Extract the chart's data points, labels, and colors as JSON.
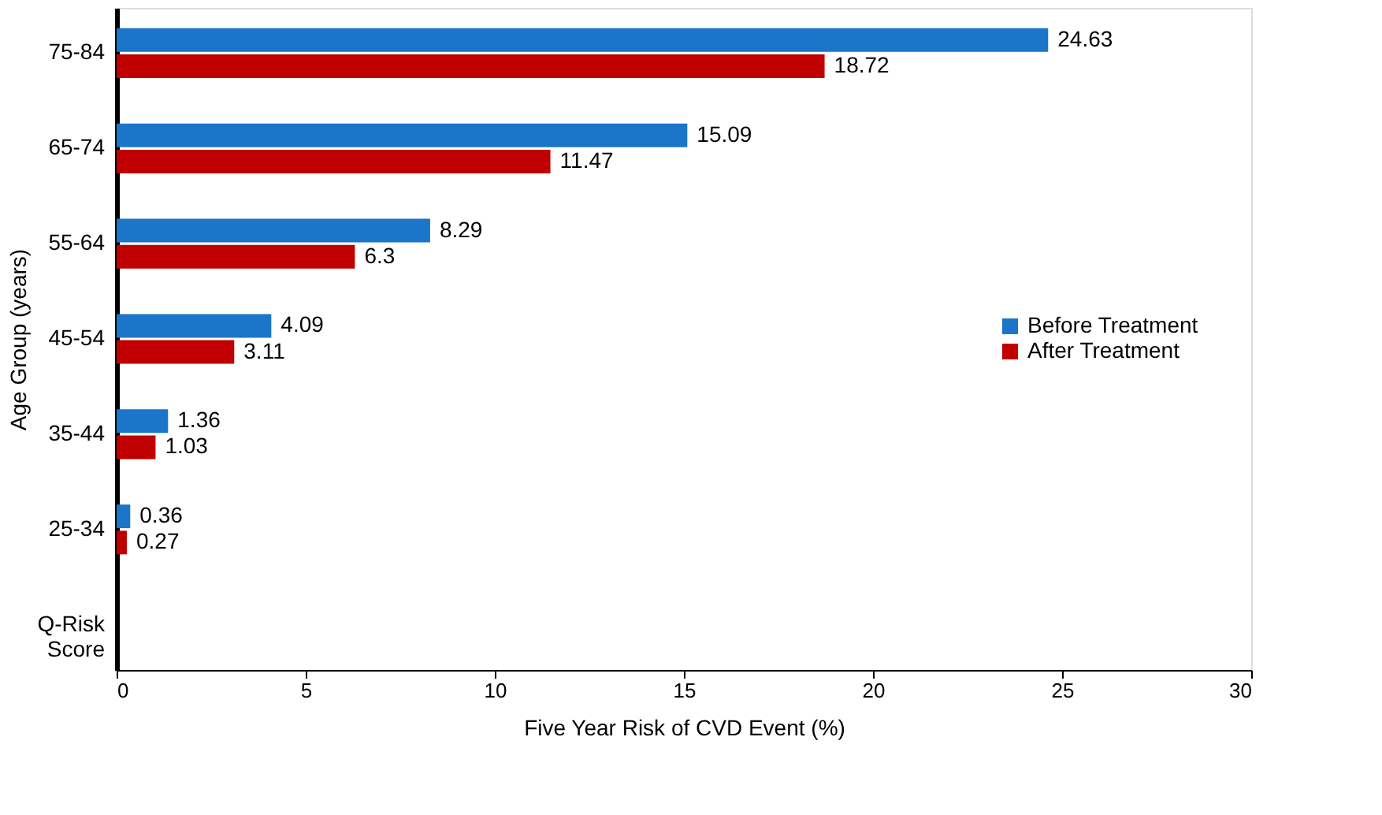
{
  "chart_data": {
    "type": "bar",
    "orientation": "horizontal",
    "xlabel": "Five Year Risk of CVD Event (%)",
    "ylabel": "Age Group (years)",
    "categories": [
      "75-84",
      "65-74",
      "55-64",
      "45-54",
      "35-44",
      "25-34",
      "Q-Risk Score"
    ],
    "series": [
      {
        "name": "Before Treatment",
        "color": "#1b75c9",
        "values": [
          24.63,
          15.09,
          8.29,
          4.09,
          1.36,
          0.36,
          null
        ]
      },
      {
        "name": "After Treatment",
        "color": "#c00000",
        "values": [
          18.72,
          11.47,
          6.3,
          3.11,
          1.03,
          0.27,
          null
        ]
      }
    ],
    "xlim": [
      0,
      30
    ],
    "xticks": [
      0,
      5,
      10,
      15,
      20,
      25,
      30
    ],
    "data_labels": true,
    "legend": "right",
    "grid": false
  }
}
